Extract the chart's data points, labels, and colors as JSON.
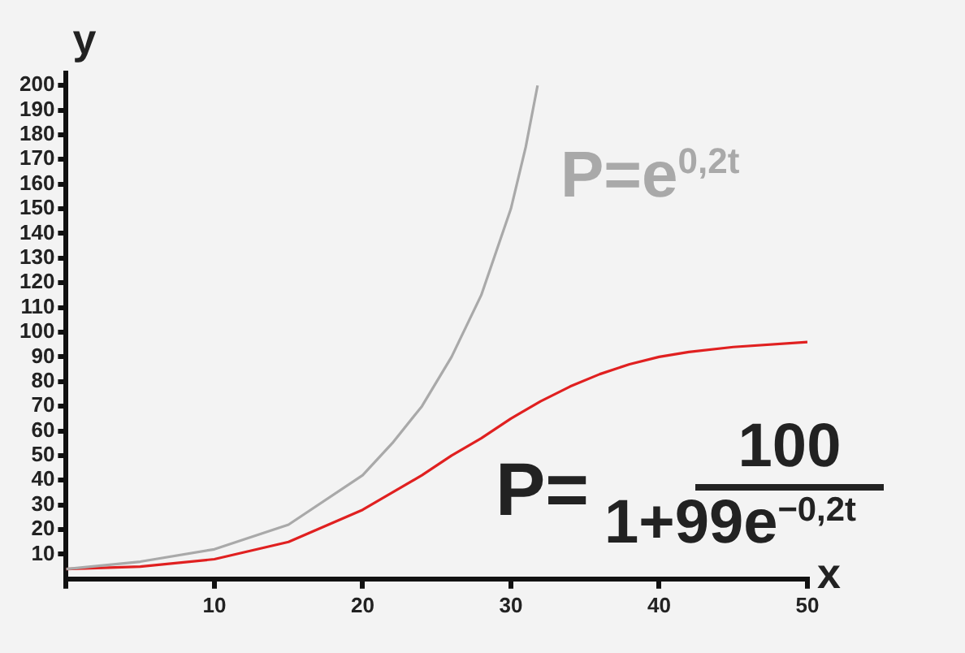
{
  "chart_data": {
    "type": "line",
    "xlabel": "x",
    "ylabel": "y",
    "xlim": [
      0,
      50
    ],
    "ylim": [
      0,
      205
    ],
    "xticks": [
      {
        "value": 0,
        "label": null
      },
      10,
      20,
      30,
      40,
      50
    ],
    "yticks": [
      10,
      20,
      30,
      40,
      50,
      60,
      70,
      80,
      90,
      100,
      110,
      120,
      130,
      140,
      150,
      160,
      170,
      180,
      190,
      200
    ],
    "annotations": [
      "P=e$^{0,2t}$",
      "P=",
      "100",
      "1+99e$^{−0,2t}$"
    ],
    "grid": false,
    "legend": false,
    "marker": "none",
    "line_style": "solid",
    "series": [
      {
        "color": "#a9a9a9",
        "x": [
          0,
          5,
          10,
          15,
          20,
          22,
          24,
          26,
          28,
          30,
          31,
          31.8
        ],
        "values": [
          4,
          7,
          12,
          22,
          42,
          55,
          70,
          90,
          115,
          150,
          175,
          200
        ]
      },
      {
        "color": "#e02020",
        "x": [
          0,
          5,
          10,
          15,
          20,
          22,
          24,
          26,
          28,
          30,
          32,
          34,
          36,
          38,
          40,
          42,
          45,
          50
        ],
        "values": [
          4,
          5,
          8,
          15,
          28,
          35,
          42,
          50,
          57,
          65,
          72,
          78,
          83,
          87,
          90,
          92,
          94,
          96
        ]
      }
    ]
  }
}
